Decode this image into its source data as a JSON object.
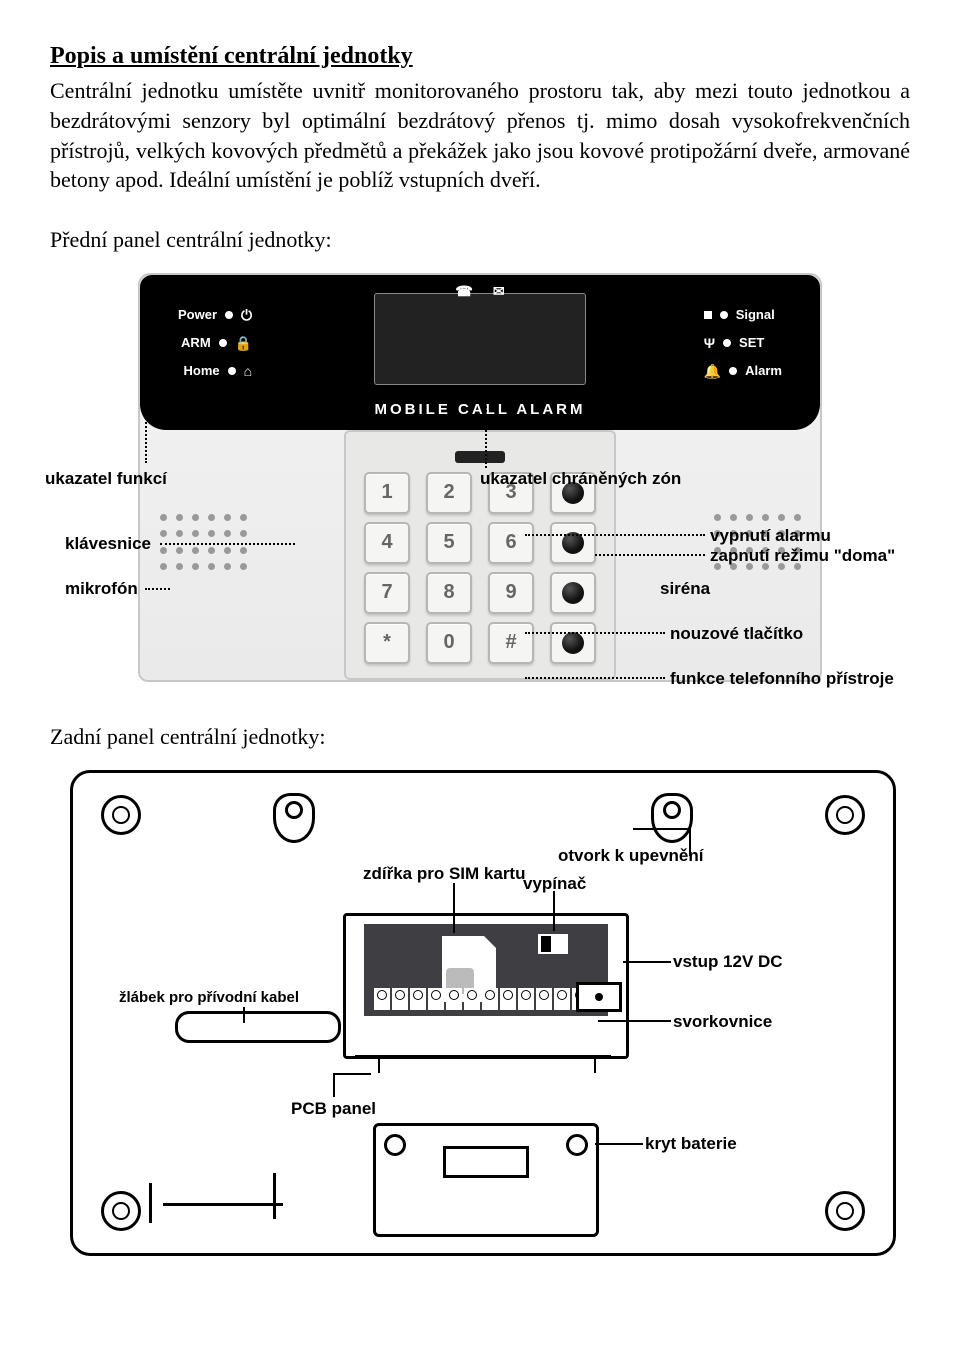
{
  "title": "Popis a umístění centrální jednotky",
  "para1": "Centrální jednotku umístěte uvnitř monitorovaného prostoru tak, aby mezi touto jednotkou a bezdrátovými senzory byl optimální bezdrátový přenos tj. mimo dosah vysokofrekvenčních přístrojů, velkých kovových předmětů a překážek jako jsou kovové protipožární dveře, armované betony apod. Ideální umístění je poblíž vstupních dveří.",
  "front_heading": "Přední panel centrální jednotky:",
  "rear_heading": "Zadní panel centrální jednotky:",
  "panel": {
    "power": "Power",
    "arm": "ARM",
    "home": "Home",
    "signal": "Signal",
    "set": "SET",
    "alarm": "Alarm",
    "mca": "MOBILE CALL ALARM"
  },
  "keys": [
    "1",
    "2",
    "3",
    "4",
    "5",
    "6",
    "7",
    "8",
    "9",
    "*",
    "0",
    "#"
  ],
  "front_labels": {
    "func": "ukazatel funkcí",
    "zones": "ukazatel chráněných zón",
    "keypad": "klávesnice",
    "mic": "mikrofón",
    "disarm": "vypnutí alarmu",
    "home_mode": "zapnutí režimu \"doma\"",
    "siren": "siréna",
    "panic": "nouzové tlačítko",
    "phone": "funkce telefonního přístroje"
  },
  "rear_labels": {
    "sim": "zdířka pro SIM kartu",
    "hole": "otvork k upevnění",
    "switch": "vypínač",
    "dc": "vstup 12V DC",
    "cable": "žlábek pro přívodní kabel",
    "term": "svorkovnice",
    "pcb": "PCB panel",
    "batt": "kryt baterie"
  }
}
